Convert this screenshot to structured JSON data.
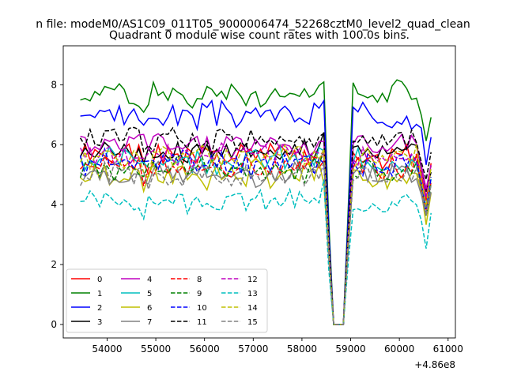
{
  "chart_data": {
    "type": "line",
    "suptitle": "n file: modeM0/AS1C09_011T05_9000006474_52268cztM0_level2_quad_clean",
    "title": "Quadrant 0 module wise count rates with 100.0s bins.",
    "xlabel": "",
    "ylabel": "",
    "x_offset_label": "+4.86e8",
    "x_offset": 486000000,
    "xlim": [
      53100,
      61150
    ],
    "ylim": [
      -0.45,
      9.3
    ],
    "xticks": [
      54000,
      55000,
      56000,
      57000,
      58000,
      59000,
      60000,
      61000
    ],
    "xtick_labels": [
      "54000",
      "55000",
      "56000",
      "57000",
      "58000",
      "59000",
      "60000",
      "61000"
    ],
    "yticks": [
      0,
      2,
      4,
      6,
      8
    ],
    "ytick_labels": [
      "0",
      "2",
      "4",
      "6",
      "8"
    ],
    "grid": false,
    "legend_location": "lower-left",
    "legend_columns": 4,
    "series": [
      {
        "name": "0",
        "color": "#ff0000",
        "linestyle": "solid",
        "base": 5.6,
        "spread": 0.35,
        "seed": 1
      },
      {
        "name": "1",
        "color": "#008000",
        "linestyle": "solid",
        "base": 7.7,
        "spread": 0.35,
        "seed": 2
      },
      {
        "name": "2",
        "color": "#0000ff",
        "linestyle": "solid",
        "base": 7.0,
        "spread": 0.35,
        "seed": 3
      },
      {
        "name": "3",
        "color": "#000000",
        "linestyle": "solid",
        "base": 5.8,
        "spread": 0.3,
        "seed": 4
      },
      {
        "name": "4",
        "color": "#bf00bf",
        "linestyle": "solid",
        "base": 6.0,
        "spread": 0.35,
        "seed": 5
      },
      {
        "name": "5",
        "color": "#00bfbf",
        "linestyle": "solid",
        "base": 5.5,
        "spread": 0.35,
        "seed": 6
      },
      {
        "name": "6",
        "color": "#bfbf00",
        "linestyle": "solid",
        "base": 5.0,
        "spread": 0.4,
        "seed": 7
      },
      {
        "name": "7",
        "color": "#808080",
        "linestyle": "solid",
        "base": 5.0,
        "spread": 0.35,
        "seed": 8
      },
      {
        "name": "8",
        "color": "#ff0000",
        "linestyle": "dashed",
        "base": 5.3,
        "spread": 0.35,
        "seed": 9
      },
      {
        "name": "9",
        "color": "#008000",
        "linestyle": "dashed",
        "base": 5.2,
        "spread": 0.35,
        "seed": 10
      },
      {
        "name": "10",
        "color": "#0000ff",
        "linestyle": "dashed",
        "base": 5.4,
        "spread": 0.4,
        "seed": 11
      },
      {
        "name": "11",
        "color": "#000000",
        "linestyle": "dashed",
        "base": 6.2,
        "spread": 0.35,
        "seed": 12
      },
      {
        "name": "12",
        "color": "#bf00bf",
        "linestyle": "dashed",
        "base": 5.7,
        "spread": 0.35,
        "seed": 13
      },
      {
        "name": "13",
        "color": "#00bfbf",
        "linestyle": "dashed",
        "base": 4.1,
        "spread": 0.3,
        "seed": 14
      },
      {
        "name": "14",
        "color": "#bfbf00",
        "linestyle": "dashed",
        "base": 5.6,
        "spread": 0.35,
        "seed": 15
      },
      {
        "name": "15",
        "color": "#808080",
        "linestyle": "dashed",
        "base": 5.0,
        "spread": 0.35,
        "seed": 16
      }
    ]
  }
}
